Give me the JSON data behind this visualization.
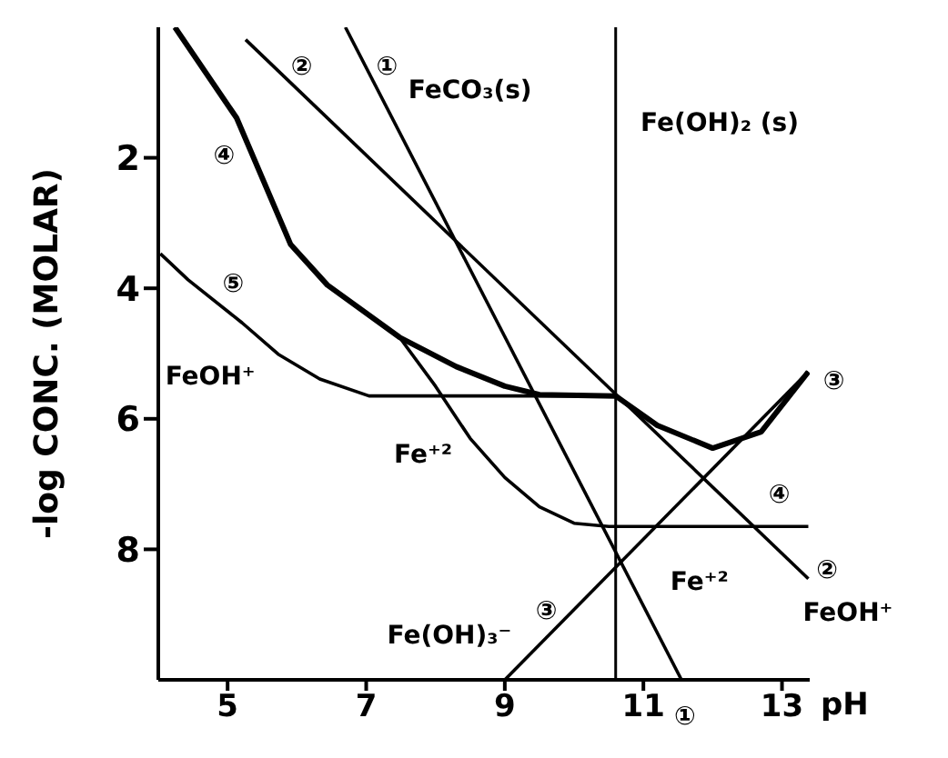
{
  "chart_data": {
    "type": "line",
    "xlabel": "pH",
    "ylabel": "-log CONC. (MOLAR)",
    "xlim": [
      4,
      13.4
    ],
    "ylim": [
      10,
      0
    ],
    "xticks": [
      5,
      7,
      9,
      11,
      13
    ],
    "yticks": [
      2,
      4,
      6,
      8
    ],
    "grid": false,
    "marker": "none",
    "line_style": "solid",
    "series": [
      {
        "color": "#000000",
        "x": [
          6.7,
          11.55
        ],
        "values": [
          0,
          10
        ]
      },
      {
        "color": "#000000",
        "x": [
          5.26,
          13.38
        ],
        "values": [
          0.19,
          8.45
        ]
      },
      {
        "color": "#000000",
        "x": [
          9.0,
          13.38
        ],
        "values": [
          10,
          5.28
        ]
      },
      {
        "color": "#000000",
        "x": [
          4.24,
          5.13,
          5.91,
          6.44,
          7.48,
          8.0,
          8.5,
          9.0,
          9.5,
          10.0,
          10.5,
          13.38
        ],
        "values": [
          0,
          1.39,
          3.33,
          3.95,
          4.75,
          5.5,
          6.3,
          6.9,
          7.35,
          7.6,
          7.65,
          7.65
        ]
      },
      {
        "color": "#000000",
        "x": [
          4.03,
          4.43,
          5.21,
          5.73,
          6.33,
          7.04,
          10.6
        ],
        "values": [
          3.47,
          3.87,
          4.53,
          5.01,
          5.39,
          5.65,
          5.65
        ]
      },
      {
        "color": "#000000",
        "x": [
          4.24,
          5.13,
          5.91,
          6.44,
          7.48,
          8.3,
          9.0,
          9.5,
          10.6,
          11.2,
          12.0,
          12.7,
          13.38
        ],
        "values": [
          0,
          1.39,
          3.33,
          3.95,
          4.75,
          5.2,
          5.5,
          5.63,
          5.65,
          6.1,
          6.45,
          6.2,
          5.28
        ]
      }
    ],
    "ref_lines": [
      {
        "axis": "x",
        "value": 10.6,
        "color": "#000000"
      }
    ],
    "annotations": [
      "②",
      "①",
      "FeCO₃(s)",
      "Fe(OH)₂ (s)",
      "④",
      "⑤",
      "FeOH⁺",
      "Fe⁺²",
      "Fe(OH)₃⁻",
      "③",
      "Fe⁺²",
      "③",
      "④",
      "②",
      "FeOH⁺",
      "①"
    ]
  }
}
